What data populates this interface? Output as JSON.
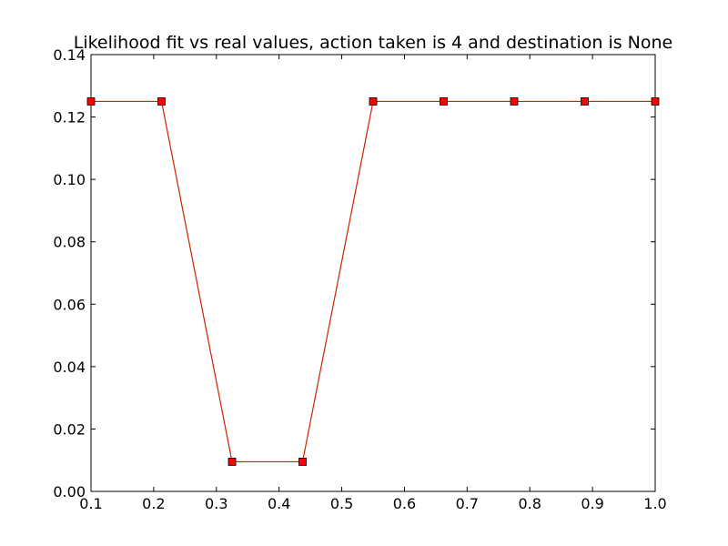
{
  "chart_data": {
    "type": "line",
    "title": "Likelihood fit vs real values, action taken is 4 and destination is None",
    "xlabel": "",
    "ylabel": "",
    "xlim": [
      0.1,
      1.0
    ],
    "ylim": [
      0.0,
      0.14
    ],
    "x_ticks": [
      "0.1",
      "0.2",
      "0.3",
      "0.4",
      "0.5",
      "0.6",
      "0.7",
      "0.8",
      "0.9",
      "1.0"
    ],
    "y_ticks": [
      "0.00",
      "0.02",
      "0.04",
      "0.06",
      "0.08",
      "0.10",
      "0.12",
      "0.14"
    ],
    "grid": false,
    "legend": "none",
    "series": [
      {
        "line_color": "#cc2200",
        "marker": "square",
        "marker_color": "#ff0000",
        "points": [
          {
            "x": 0.1,
            "y": 0.125
          },
          {
            "x": 0.2125,
            "y": 0.125
          },
          {
            "x": 0.325,
            "y": 0.0095
          },
          {
            "x": 0.4375,
            "y": 0.0095
          },
          {
            "x": 0.55,
            "y": 0.125
          },
          {
            "x": 0.6625,
            "y": 0.125
          },
          {
            "x": 0.775,
            "y": 0.125
          },
          {
            "x": 0.8875,
            "y": 0.125
          },
          {
            "x": 1.0,
            "y": 0.125
          }
        ]
      }
    ]
  }
}
